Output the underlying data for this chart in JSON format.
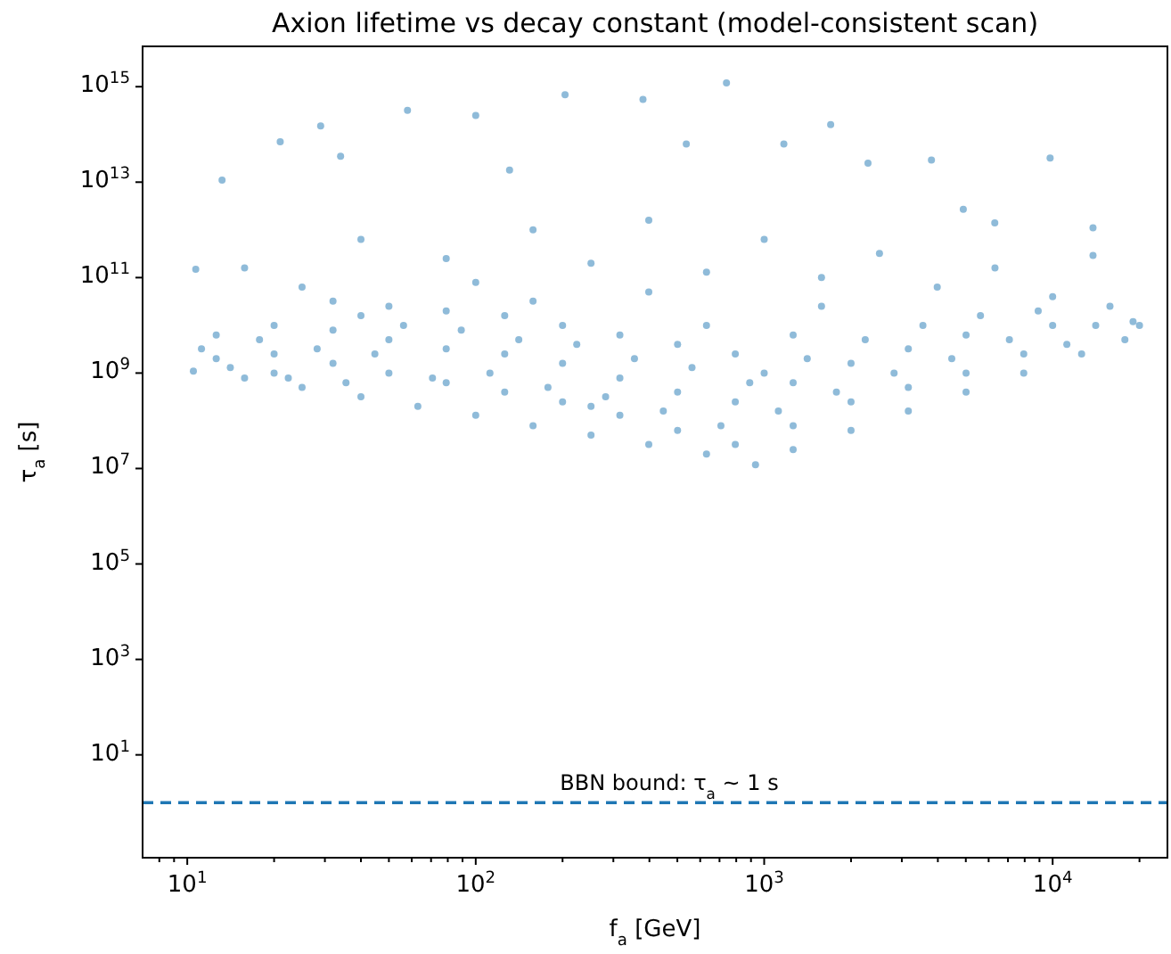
{
  "chart_data": {
    "type": "scatter",
    "title": "Axion lifetime vs decay constant (model-consistent scan)",
    "xlabel": "f$_{a}$ [GeV]",
    "ylabel": "τ$_{a}$ [s]",
    "log": "xy",
    "marker": "circle",
    "grid": false,
    "xlim": [
      7,
      25000
    ],
    "ylim": [
      0.07,
      7000000000000000.0
    ],
    "xticks": [
      {
        "value": 8,
        "label": null
      },
      {
        "value": 9,
        "label": null
      },
      {
        "value": 10,
        "label": "10$^{1}$"
      },
      {
        "value": 20,
        "label": null
      },
      {
        "value": 30,
        "label": null
      },
      {
        "value": 40,
        "label": null
      },
      {
        "value": 50,
        "label": null
      },
      {
        "value": 60,
        "label": null
      },
      {
        "value": 70,
        "label": null
      },
      {
        "value": 80,
        "label": null
      },
      {
        "value": 90,
        "label": null
      },
      {
        "value": 100,
        "label": "10$^{2}$"
      },
      {
        "value": 200,
        "label": null
      },
      {
        "value": 300,
        "label": null
      },
      {
        "value": 400,
        "label": null
      },
      {
        "value": 500,
        "label": null
      },
      {
        "value": 600,
        "label": null
      },
      {
        "value": 700,
        "label": null
      },
      {
        "value": 800,
        "label": null
      },
      {
        "value": 900,
        "label": null
      },
      {
        "value": 1000,
        "label": "10$^{3}$"
      },
      {
        "value": 2000,
        "label": null
      },
      {
        "value": 3000,
        "label": null
      },
      {
        "value": 4000,
        "label": null
      },
      {
        "value": 5000,
        "label": null
      },
      {
        "value": 6000,
        "label": null
      },
      {
        "value": 7000,
        "label": null
      },
      {
        "value": 8000,
        "label": null
      },
      {
        "value": 9000,
        "label": null
      },
      {
        "value": 10000,
        "label": "10$^{4}$"
      },
      {
        "value": 20000,
        "label": null
      }
    ],
    "yticks": [
      {
        "value": 10,
        "label": "10$^{1}$"
      },
      {
        "value": 1000,
        "label": "10$^{3}$"
      },
      {
        "value": 100000,
        "label": "10$^{5}$"
      },
      {
        "value": 10000000.0,
        "label": "10$^{7}$"
      },
      {
        "value": 1000000000.0,
        "label": "10$^{9}$"
      },
      {
        "value": 100000000000.0,
        "label": "10$^{11}$"
      },
      {
        "value": 10000000000000.0,
        "label": "10$^{13}$"
      },
      {
        "value": 1000000000000000.0,
        "label": "10$^{15}$"
      }
    ],
    "ref_lines": [
      {
        "axis": "y",
        "value": 1,
        "label": "BBN bound: τ$_{a}$ ∼ 1 s",
        "color": "#1f77b4",
        "line_style": "dashed"
      }
    ],
    "series": [
      {
        "color": "#1f77b4",
        "x": [
          10.5,
          15.8,
          25,
          40,
          63,
          100,
          158,
          251,
          398,
          631,
          933,
          1260,
          2000,
          3160,
          5010,
          7940,
          12600,
          17800,
          20000,
          15800,
          12.6,
          12.6,
          20,
          20,
          32,
          32,
          32,
          50,
          50,
          50,
          79,
          79,
          79,
          126,
          126,
          126,
          200,
          200,
          200,
          316,
          316,
          316,
          501,
          501,
          501,
          794,
          794,
          794,
          1260,
          1260,
          1260,
          2000,
          2000,
          3160,
          3160,
          5010,
          5010,
          7940,
          10000,
          13.2,
          21,
          29,
          58,
          100,
          204,
          380,
          740,
          1700,
          3800,
          9800,
          13800,
          19000,
          10.7,
          34,
          131,
          537,
          1170,
          2290,
          6300,
          4900,
          13800,
          15.8,
          40,
          79,
          158,
          251,
          398,
          631,
          1000,
          1580,
          2510,
          3980,
          6310,
          10000,
          25,
          100,
          398,
          1580,
          11.2,
          14.1,
          17.8,
          22.4,
          28.2,
          35.5,
          44.7,
          56.2,
          70.8,
          89.1,
          112,
          141,
          178,
          224,
          282,
          355,
          447,
          562,
          708,
          891,
          1120,
          1410,
          1780,
          2240,
          2820,
          3550,
          4470,
          5620,
          7080,
          8910,
          11200,
          14100,
          40,
          158,
          631,
          1000,
          251,
          20
        ],
        "values": [
          1100000000.0,
          790000000.0,
          500000000.0,
          320000000.0,
          200000000.0,
          130000000.0,
          79000000.0,
          50000000.0,
          32000000.0,
          20000000.0,
          12000000.0,
          25000000.0,
          63000000.0,
          160000000.0,
          400000000.0,
          1000000000.0,
          2500000000.0,
          5000000000.0,
          10000000000.0,
          25000000000.0,
          2000000000.0,
          6300000000.0,
          2500000000.0,
          10000000000.0,
          1600000000.0,
          7900000000.0,
          32000000000.0,
          1000000000.0,
          5000000000.0,
          25000000000.0,
          630000000.0,
          3200000000.0,
          20000000000.0,
          400000000.0,
          2500000000.0,
          16000000000.0,
          250000000.0,
          1600000000.0,
          10000000000.0,
          130000000.0,
          790000000.0,
          6300000000.0,
          63000000.0,
          400000000.0,
          4000000000.0,
          32000000.0,
          250000000.0,
          2500000000.0,
          79000000.0,
          630000000.0,
          6300000000.0,
          250000000.0,
          1600000000.0,
          500000000.0,
          3200000000.0,
          1000000000.0,
          6300000000.0,
          2500000000.0,
          10000000000.0,
          11000000000000.0,
          70000000000000.0,
          150000000000000.0,
          320000000000000.0,
          250000000000000.0,
          680000000000000.0,
          540000000000000.0,
          1200000000000000.0,
          160000000000000.0,
          29000000000000.0,
          32000000000000.0,
          1100000000000.0,
          12000000000.0,
          150000000000.0,
          35000000000000.0,
          18000000000000.0,
          63000000000000.0,
          63000000000000.0,
          25000000000000.0,
          1400000000000.0,
          2700000000000.0,
          290000000000.0,
          160000000000.0,
          630000000000.0,
          250000000000.0,
          1000000000000.0,
          200000000000.0,
          1600000000000.0,
          130000000000.0,
          630000000000.0,
          100000000000.0,
          320000000000.0,
          63000000000.0,
          160000000000.0,
          40000000000.0,
          63000000000.0,
          79000000000.0,
          50000000000.0,
          25000000000.0,
          3200000000.0,
          1300000000.0,
          5000000000.0,
          790000000.0,
          3200000000.0,
          630000000.0,
          2500000000.0,
          10000000000.0,
          790000000.0,
          7900000000.0,
          1000000000.0,
          5000000000.0,
          500000000.0,
          4000000000.0,
          320000000.0,
          2000000000.0,
          160000000.0,
          1300000000.0,
          79000000.0,
          630000000.0,
          160000000.0,
          2000000000.0,
          400000000.0,
          5000000000.0,
          1000000000.0,
          10000000000.0,
          2000000000.0,
          16000000000.0,
          5000000000.0,
          20000000000.0,
          4000000000.0,
          10000000000.0,
          16000000000.0,
          32000000000.0,
          10000000000.0,
          1000000000.0,
          200000000.0,
          1000000000.0
        ]
      }
    ]
  }
}
